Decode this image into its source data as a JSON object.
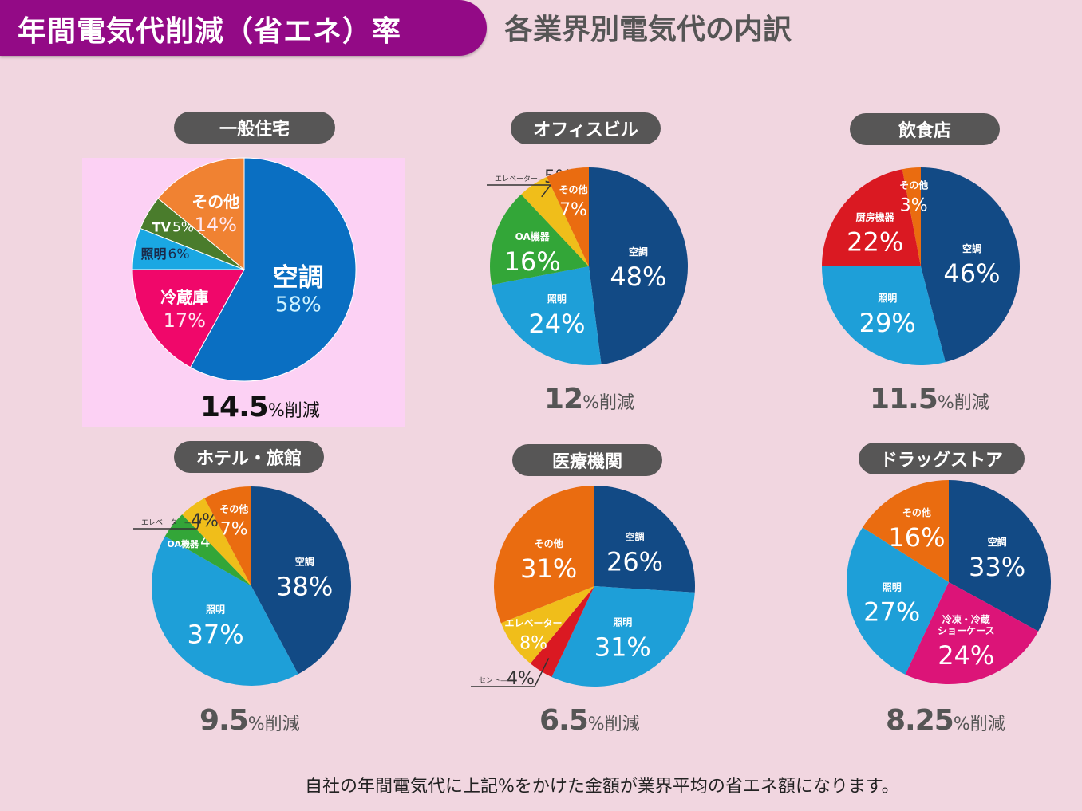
{
  "header": {
    "title": "年間電気代削減（省エネ）率",
    "subtitle": "各業界別電気代の内訳"
  },
  "footnote": "自社の年間電気代に上記%をかけた金額が業界平均の省エネ額になります。",
  "reduction_unit": "%削減",
  "chart_data": [
    {
      "type": "pie",
      "title": "一般住宅",
      "reduction": "14.5",
      "highlighted": true,
      "slices": [
        {
          "label": "空調",
          "value": 58,
          "text": "58%",
          "color": "#0a6fc2"
        },
        {
          "label": "冷蔵庫",
          "value": 17,
          "text": "17%",
          "color": "#f0076a"
        },
        {
          "label": "照明",
          "value": 6,
          "text": "6%",
          "color": "#1aa7e3"
        },
        {
          "label": "TV",
          "value": 5,
          "text": "5%",
          "color": "#4a7c2c"
        },
        {
          "label": "その他",
          "value": 14,
          "text": "14%",
          "color": "#f08232"
        }
      ]
    },
    {
      "type": "pie",
      "title": "オフィスビル",
      "reduction": "12",
      "slices": [
        {
          "label": "空調",
          "value": 48,
          "text": "48%",
          "color": "#124a85"
        },
        {
          "label": "照明",
          "value": 24,
          "text": "24%",
          "color": "#1e9fd8"
        },
        {
          "label": "OA機器",
          "value": 16,
          "text": "16%",
          "color": "#33a638"
        },
        {
          "label": "エレベーター",
          "value": 5,
          "text": "5%",
          "color": "#f0be1a"
        },
        {
          "label": "その他",
          "value": 7,
          "text": "7%",
          "color": "#ea6c10"
        }
      ]
    },
    {
      "type": "pie",
      "title": "飲食店",
      "reduction": "11.5",
      "slices": [
        {
          "label": "空調",
          "value": 46,
          "text": "46%",
          "color": "#124a85"
        },
        {
          "label": "照明",
          "value": 29,
          "text": "29%",
          "color": "#1e9fd8"
        },
        {
          "label": "厨房機器",
          "value": 22,
          "text": "22%",
          "color": "#da1922"
        },
        {
          "label": "その他",
          "value": 3,
          "text": "3%",
          "color": "#ea6c10"
        }
      ]
    },
    {
      "type": "pie",
      "title": "ホテル・旅館",
      "reduction": "9.5",
      "slices": [
        {
          "label": "空調",
          "value": 38,
          "text": "38%",
          "color": "#124a85"
        },
        {
          "label": "照明",
          "value": 37,
          "text": "37%",
          "color": "#1e9fd8"
        },
        {
          "label": "OA機器",
          "value": 4,
          "text": "4%",
          "color": "#33a638"
        },
        {
          "label": "エレベーター",
          "value": 4,
          "text": "4%",
          "color": "#f0be1a"
        },
        {
          "label": "その他",
          "value": 7,
          "text": "7%",
          "color": "#ea6c10"
        }
      ]
    },
    {
      "type": "pie",
      "title": "医療機関",
      "reduction": "6.5",
      "slices": [
        {
          "label": "空調",
          "value": 26,
          "text": "26%",
          "color": "#124a85"
        },
        {
          "label": "照明",
          "value": 31,
          "text": "31%",
          "color": "#1e9fd8"
        },
        {
          "label": "コンセント",
          "value": 4,
          "text": "4%",
          "display_label": "セント",
          "color": "#da1922"
        },
        {
          "label": "エレベーター",
          "value": 8,
          "text": "8%",
          "color": "#f0be1a"
        },
        {
          "label": "その他",
          "value": 31,
          "text": "31%",
          "color": "#ea6c10"
        }
      ]
    },
    {
      "type": "pie",
      "title": "ドラッグストア",
      "reduction": "8.25",
      "slices": [
        {
          "label": "空調",
          "value": 33,
          "text": "33%",
          "color": "#124a85"
        },
        {
          "label": "冷凍・冷蔵ショーケース",
          "value": 24,
          "text": "24%",
          "color": "#dc1478"
        },
        {
          "label": "照明",
          "value": 27,
          "text": "27%",
          "color": "#1e9fd8"
        },
        {
          "label": "その他",
          "value": 16,
          "text": "16%",
          "color": "#ea6c10"
        }
      ]
    }
  ]
}
